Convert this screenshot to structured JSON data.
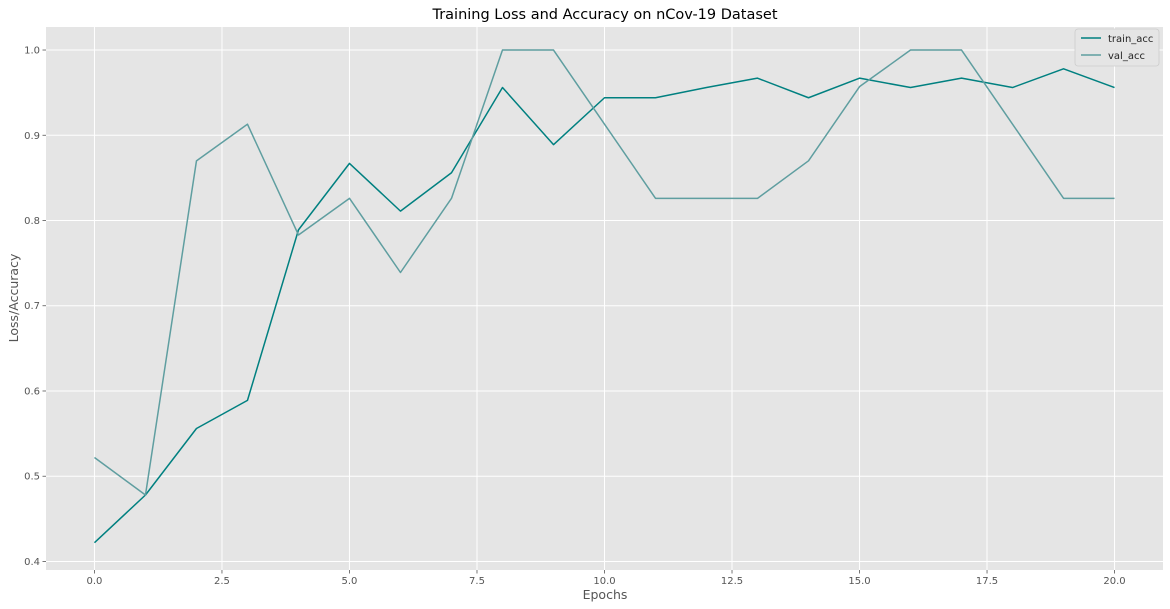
{
  "chart_data": {
    "type": "line",
    "title": "Training Loss and Accuracy on nCov-19 Dataset",
    "xlabel": "Epochs",
    "ylabel": "Loss/Accuracy",
    "xlim": [
      -0.95,
      20.95
    ],
    "ylim": [
      0.39,
      1.027
    ],
    "x_ticks": [
      0.0,
      2.5,
      5.0,
      7.5,
      10.0,
      12.5,
      15.0,
      17.5,
      20.0
    ],
    "y_ticks": [
      0.4,
      0.5,
      0.6,
      0.7,
      0.8,
      0.9,
      1.0
    ],
    "grid": true,
    "legend_position": "top-right",
    "x": [
      0,
      1,
      2,
      3,
      4,
      5,
      6,
      7,
      8,
      9,
      10,
      11,
      12,
      13,
      14,
      15,
      16,
      17,
      18,
      19,
      20
    ],
    "series": [
      {
        "name": "train_acc",
        "color": "#008080",
        "values": [
          0.422,
          0.478,
          0.556,
          0.589,
          0.789,
          0.867,
          0.811,
          0.856,
          0.956,
          0.889,
          0.944,
          0.944,
          0.956,
          0.967,
          0.944,
          0.967,
          0.956,
          0.967,
          0.956,
          0.978,
          0.956
        ]
      },
      {
        "name": "val_acc",
        "color": "#5f9ea0",
        "values": [
          0.522,
          0.478,
          0.87,
          0.913,
          0.783,
          0.826,
          0.739,
          0.826,
          1.0,
          1.0,
          0.913,
          0.826,
          0.826,
          0.826,
          0.87,
          0.957,
          1.0,
          1.0,
          0.913,
          0.826,
          0.826
        ]
      }
    ]
  }
}
